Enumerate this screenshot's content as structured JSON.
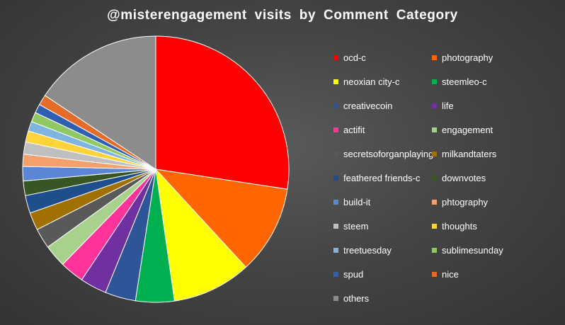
{
  "chart_data": {
    "type": "pie",
    "title": "@misterengagement  visits  by  Comment  Category",
    "legend_position": "right",
    "slices": [
      {
        "label": "ocd-c",
        "value": 28.0,
        "color": "#ff0000"
      },
      {
        "label": "photography",
        "value": 11.0,
        "color": "#ff6600"
      },
      {
        "label": "neoxian city-c",
        "value": 9.8,
        "color": "#ffff00"
      },
      {
        "label": "steemleo-c",
        "value": 4.8,
        "color": "#00b050"
      },
      {
        "label": "creativecoin",
        "value": 3.8,
        "color": "#2e5597"
      },
      {
        "label": "life",
        "value": 3.3,
        "color": "#7030a0"
      },
      {
        "label": "actifit",
        "value": 3.0,
        "color": "#ff3399"
      },
      {
        "label": "engagement",
        "value": 2.8,
        "color": "#a9d18e"
      },
      {
        "label": "secretsoforganplaying",
        "value": 2.5,
        "color": "#595959"
      },
      {
        "label": "milkandtaters",
        "value": 2.2,
        "color": "#a07000"
      },
      {
        "label": "feathered friends-c",
        "value": 2.2,
        "color": "#1f4e8c"
      },
      {
        "label": "downvotes",
        "value": 1.8,
        "color": "#375623"
      },
      {
        "label": "build-it",
        "value": 1.8,
        "color": "#5b86d6"
      },
      {
        "label": "phtography",
        "value": 1.5,
        "color": "#f4a06a"
      },
      {
        "label": "steem",
        "value": 1.5,
        "color": "#bfbfbf"
      },
      {
        "label": "thoughts",
        "value": 1.4,
        "color": "#ffd43b"
      },
      {
        "label": "treetuesday",
        "value": 1.2,
        "color": "#7fb3e0"
      },
      {
        "label": "sublimesunday",
        "value": 1.2,
        "color": "#92c863"
      },
      {
        "label": "spud",
        "value": 1.1,
        "color": "#2f5fb0"
      },
      {
        "label": "nice",
        "value": 1.3,
        "color": "#e46c28"
      },
      {
        "label": "others",
        "value": 16.0,
        "color": "#8c8c8c"
      }
    ]
  }
}
